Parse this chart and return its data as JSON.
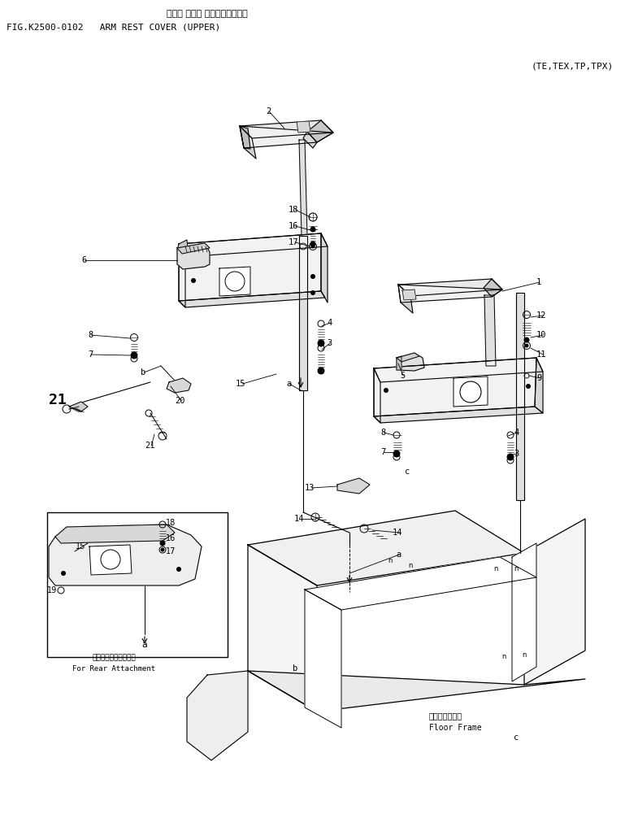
{
  "title_japanese": "アーム レスト カバー（アッパ）",
  "title_english": "FIG.K2500-0102   ARM REST COVER (UPPER)",
  "subtitle": "(TE,TEX,TP,TPX)",
  "bg_color": "#ffffff",
  "inset_label_japanese": "後方用アタッチメント",
  "inset_label_english": "For Rear Attachment",
  "floor_frame_japanese": "フロアフレーム",
  "floor_frame_english": "Floor Frame"
}
